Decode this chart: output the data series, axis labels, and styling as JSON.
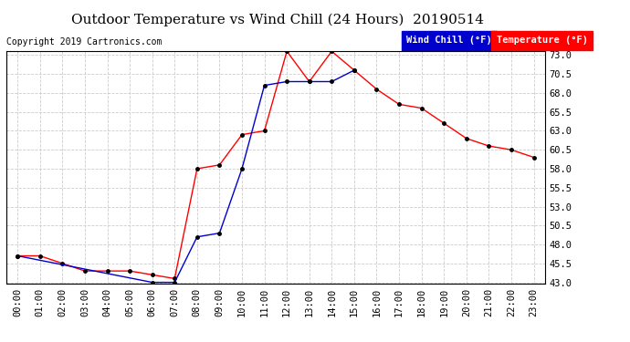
{
  "title": "Outdoor Temperature vs Wind Chill (24 Hours)  20190514",
  "copyright": "Copyright 2019 Cartronics.com",
  "hours": [
    "00:00",
    "01:00",
    "02:00",
    "03:00",
    "04:00",
    "05:00",
    "06:00",
    "07:00",
    "08:00",
    "09:00",
    "10:00",
    "11:00",
    "12:00",
    "13:00",
    "14:00",
    "15:00",
    "16:00",
    "17:00",
    "18:00",
    "19:00",
    "20:00",
    "21:00",
    "22:00",
    "23:00"
  ],
  "temperature": [
    46.5,
    46.5,
    45.5,
    44.5,
    44.5,
    44.5,
    44.0,
    43.5,
    58.0,
    58.5,
    62.5,
    63.0,
    73.5,
    69.5,
    73.5,
    71.0,
    68.5,
    66.5,
    66.0,
    64.0,
    62.0,
    61.0,
    60.5,
    59.5
  ],
  "wind_chill": [
    46.5,
    null,
    null,
    null,
    null,
    null,
    43.0,
    43.0,
    49.0,
    49.5,
    58.0,
    69.0,
    69.5,
    69.5,
    69.5,
    71.0,
    null,
    null,
    null,
    null,
    null,
    null,
    null,
    null
  ],
  "ylim": [
    43.0,
    73.0
  ],
  "yticks": [
    43.0,
    45.5,
    48.0,
    50.5,
    53.0,
    55.5,
    58.0,
    60.5,
    63.0,
    65.5,
    68.0,
    70.5,
    73.0
  ],
  "temp_color": "#ff0000",
  "wc_color": "#0000cc",
  "bg_color": "#ffffff",
  "grid_color": "#cccccc",
  "legend_wc_bg": "#0000cc",
  "legend_temp_bg": "#ff0000",
  "title_fontsize": 11,
  "tick_fontsize": 7.5,
  "copyright_fontsize": 7
}
